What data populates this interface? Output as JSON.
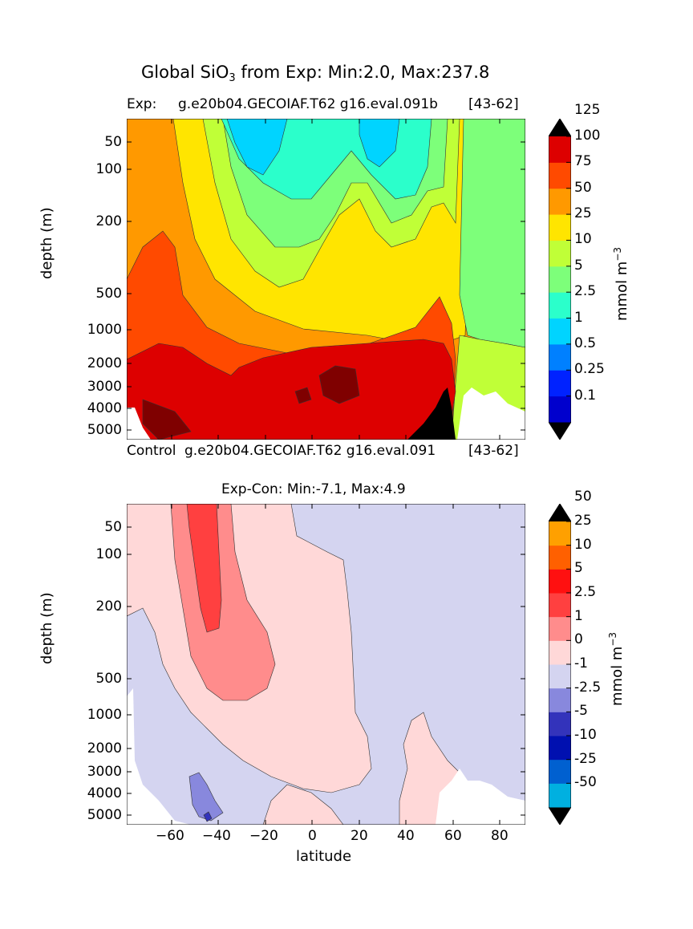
{
  "suptitle": {
    "pre": "Global SiO",
    "sub": "3",
    "post": " from Exp: Min:2.0, Max:237.8"
  },
  "panel1": {
    "label_left": "Exp:",
    "label_mid": "g.e20b04.GECOIAF.T62 g16.eval.091b",
    "label_right": "[43-62]",
    "footer_left": "Control",
    "footer_mid": "g.e20b04.GECOIAF.T62 g16.eval.091",
    "footer_right": "[43-62]"
  },
  "panel2": {
    "title": "Exp-Con: Min:-7.1, Max:4.9"
  },
  "chart_data": [
    {
      "type": "heatmap",
      "ylabel": "depth (m)",
      "xlim": [
        -80,
        90
      ],
      "y_ticks": [
        "50",
        "100",
        "200",
        "500",
        "1000",
        "2000",
        "3000",
        "4000",
        "5000"
      ],
      "colorbar": {
        "label": "mmol m",
        "label_sup": "−3",
        "levels": [
          "0.1",
          "0.25",
          "0.5",
          "1",
          "2.5",
          "5",
          "10",
          "25",
          "50",
          "75",
          "100",
          "125"
        ],
        "colors": [
          "#00007f",
          "#0000cd",
          "#0022ff",
          "#0080ff",
          "#00d4ff",
          "#2bffcb",
          "#7dff7a",
          "#c0ff37",
          "#ffe500",
          "#ff9900",
          "#ff4a00",
          "#dd0000",
          "#7f0000"
        ],
        "extend": "both"
      }
    },
    {
      "type": "heatmap",
      "xlabel": "latitude",
      "ylabel": "depth (m)",
      "xlim": [
        -80,
        90
      ],
      "x_ticks": [
        "−60",
        "−40",
        "−20",
        "0",
        "20",
        "40",
        "60",
        "80"
      ],
      "y_ticks": [
        "50",
        "100",
        "200",
        "500",
        "1000",
        "2000",
        "3000",
        "4000",
        "5000"
      ],
      "colorbar": {
        "label": "mmol m",
        "label_sup": "−3",
        "levels": [
          "-50",
          "-25",
          "-10",
          "-5",
          "-2.5",
          "-1",
          "0",
          "1",
          "2.5",
          "5",
          "10",
          "25",
          "50"
        ],
        "colors": [
          "#00ffff",
          "#00b0e0",
          "#0060d0",
          "#0010b0",
          "#3333bb",
          "#8888dd",
          "#d4d4f0",
          "#ffd8d8",
          "#ff8c8c",
          "#ff4040",
          "#ff1010",
          "#ff6000",
          "#ffa000",
          "#ffff00"
        ],
        "extend": "both"
      }
    }
  ]
}
